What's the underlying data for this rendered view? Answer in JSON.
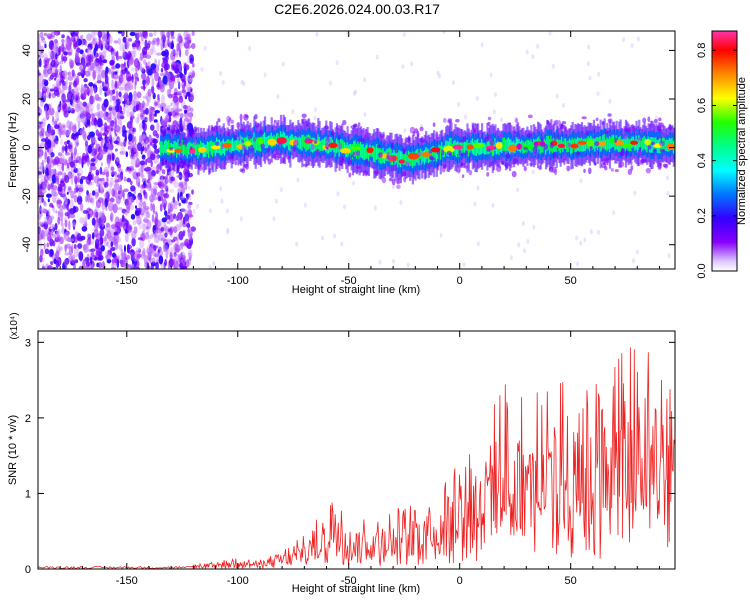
{
  "figure_title": "C2E6.2026.024.00.03.R17",
  "chart_data": [
    {
      "type": "heatmap",
      "name": "spectrogram",
      "xlabel": "Height of straight line (km)",
      "ylabel": "Frequency (Hz)",
      "xlim": [
        -190,
        97
      ],
      "ylim": [
        -50,
        48
      ],
      "xticks": [
        -150,
        -100,
        -50,
        0,
        50
      ],
      "yticks": [
        -40,
        -20,
        0,
        20,
        40
      ],
      "noise_region_x": [
        -190,
        -120
      ],
      "signal_band": {
        "x_start": -135,
        "x_end": 97,
        "centerline": [
          [
            -135,
            0
          ],
          [
            -120,
            -1
          ],
          [
            -100,
            1
          ],
          [
            -85,
            3
          ],
          [
            -70,
            2
          ],
          [
            -55,
            0
          ],
          [
            -40,
            -2
          ],
          [
            -25,
            -5
          ],
          [
            -15,
            -3
          ],
          [
            -5,
            0
          ],
          [
            10,
            0
          ],
          [
            30,
            1
          ],
          [
            50,
            1
          ],
          [
            70,
            2
          ],
          [
            90,
            1
          ]
        ],
        "half_width_hz": 4
      },
      "colorbar": {
        "label": "Normalized spectral amplitude",
        "range": [
          0.0,
          0.87
        ],
        "ticks": [
          0.0,
          0.2,
          0.4,
          0.6,
          0.8
        ],
        "colormap": [
          "#ffffff",
          "#8800ff",
          "#3300ff",
          "#0088ff",
          "#00ffff",
          "#00ff88",
          "#00ff00",
          "#ffff00",
          "#ff8800",
          "#ff0000",
          "#ff33aa"
        ]
      }
    },
    {
      "type": "line",
      "name": "snr",
      "xlabel": "Height of straight line (km)",
      "ylabel": "SNR (10 * v/v)",
      "y_multiplier": "(x10⁴)",
      "xlim": [
        -190,
        97
      ],
      "ylim": [
        0,
        3.15
      ],
      "xticks": [
        -150,
        -100,
        -50,
        0,
        50
      ],
      "yticks": [
        0,
        1,
        2,
        3
      ],
      "color": "#ee2222",
      "envelope": [
        [
          -190,
          0.02
        ],
        [
          -130,
          0.03
        ],
        [
          -110,
          0.1
        ],
        [
          -100,
          0.15
        ],
        [
          -90,
          0.12
        ],
        [
          -80,
          0.25
        ],
        [
          -70,
          0.45
        ],
        [
          -62,
          0.75
        ],
        [
          -55,
          1.2
        ],
        [
          -50,
          0.7
        ],
        [
          -40,
          0.7
        ],
        [
          -30,
          0.8
        ],
        [
          -20,
          0.9
        ],
        [
          -10,
          1.2
        ],
        [
          0,
          1.5
        ],
        [
          10,
          1.8
        ],
        [
          20,
          2.5
        ],
        [
          30,
          2.3
        ],
        [
          50,
          2.6
        ],
        [
          65,
          2.7
        ],
        [
          80,
          3.05
        ],
        [
          95,
          2.8
        ]
      ]
    }
  ]
}
